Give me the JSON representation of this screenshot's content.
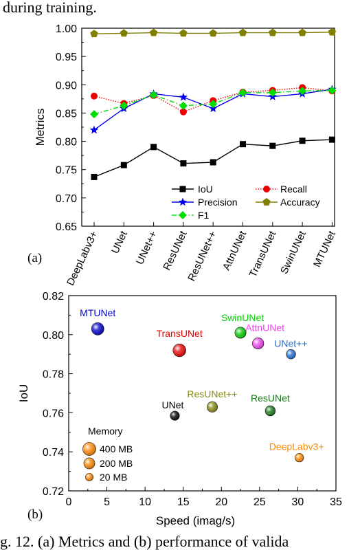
{
  "header_text": "during training.",
  "caption": "g. 12. (a) Metrics and (b) performance of valida",
  "chart_data": [
    {
      "type": "line",
      "panel_label": "(a)",
      "ylabel": "Metrics",
      "ylim": [
        0.65,
        1.0
      ],
      "yticks": [
        "0.65",
        "0.70",
        "0.75",
        "0.80",
        "0.85",
        "0.90",
        "0.95",
        "1.00"
      ],
      "categories": [
        "DeepLabv3+",
        "UNet",
        "UNet++",
        "ResUNet",
        "ResUNet++",
        "AttnUNet",
        "TransUNet",
        "SwinUNet",
        "MTUNet"
      ],
      "grid": false,
      "legend_position": "bottom-right",
      "series": [
        {
          "name": "IoU",
          "color": "#000000",
          "marker": "square",
          "line": "solid",
          "values": [
            0.737,
            0.758,
            0.79,
            0.761,
            0.763,
            0.795,
            0.792,
            0.801,
            0.803
          ]
        },
        {
          "name": "Recall",
          "color": "#ee0000",
          "marker": "circle",
          "line": "dotted",
          "values": [
            0.88,
            0.867,
            0.881,
            0.852,
            0.872,
            0.887,
            0.89,
            0.895,
            0.889
          ]
        },
        {
          "name": "Precision",
          "color": "#0000ee",
          "marker": "star",
          "line": "solid",
          "values": [
            0.82,
            0.858,
            0.884,
            0.878,
            0.858,
            0.884,
            0.879,
            0.884,
            0.892
          ]
        },
        {
          "name": "Accuracy",
          "color": "#808000",
          "marker": "pentagon",
          "line": "solid",
          "values": [
            0.99,
            0.991,
            0.992,
            0.991,
            0.991,
            0.992,
            0.992,
            0.992,
            0.993
          ]
        },
        {
          "name": "F1",
          "color": "#00dd00",
          "marker": "diamond",
          "line": "dashdot",
          "values": [
            0.848,
            0.863,
            0.882,
            0.863,
            0.866,
            0.886,
            0.886,
            0.889,
            0.89
          ]
        }
      ]
    },
    {
      "type": "scatter",
      "panel_label": "(b)",
      "xlabel": "Speed (imag/s)",
      "ylabel": "IoU",
      "xlim": [
        0,
        35
      ],
      "ylim": [
        0.72,
        0.82
      ],
      "xticks": [
        "0",
        "5",
        "10",
        "15",
        "20",
        "25",
        "30",
        "35"
      ],
      "yticks": [
        "0.72",
        "0.74",
        "0.76",
        "0.78",
        "0.80",
        "0.82"
      ],
      "grid": false,
      "points": [
        {
          "label": "MTUNet",
          "x": 3.8,
          "y": 0.803,
          "memory_mb": 330,
          "color": "#0000cc",
          "label_color": "#0000cc"
        },
        {
          "label": "TransUNet",
          "x": 14.5,
          "y": 0.792,
          "memory_mb": 380,
          "color": "#ee0000",
          "label_color": "#ee0000"
        },
        {
          "label": "SwinUNet",
          "x": 22.5,
          "y": 0.801,
          "memory_mb": 210,
          "color": "#00cc00",
          "label_color": "#00cc00"
        },
        {
          "label": "AttnUNet",
          "x": 24.8,
          "y": 0.7955,
          "memory_mb": 230,
          "color": "#ee44ee",
          "label_color": "#ee44ee"
        },
        {
          "label": "UNet++",
          "x": 29.1,
          "y": 0.79,
          "memory_mb": 90,
          "color": "#1f6fd6",
          "label_color": "#1f6fd6"
        },
        {
          "label": "ResUNet++",
          "x": 18.8,
          "y": 0.763,
          "memory_mb": 160,
          "color": "#8a8a10",
          "label_color": "#8a8a10"
        },
        {
          "label": "ResUNet",
          "x": 26.4,
          "y": 0.761,
          "memory_mb": 130,
          "color": "#117711",
          "label_color": "#117711"
        },
        {
          "label": "UNet",
          "x": 13.9,
          "y": 0.7585,
          "memory_mb": 80,
          "color": "#000000",
          "label_color": "#000000"
        },
        {
          "label": "DeepLabv3+",
          "x": 30.2,
          "y": 0.737,
          "memory_mb": 50,
          "color": "#ff8800",
          "label_color": "#ff8800"
        }
      ],
      "legend": {
        "title": "Memory",
        "color": "#ff8800",
        "entries": [
          {
            "label": "400 MB",
            "memory_mb": 400
          },
          {
            "label": "200 MB",
            "memory_mb": 200
          },
          {
            "label": "20 MB",
            "memory_mb": 20
          }
        ]
      }
    }
  ]
}
